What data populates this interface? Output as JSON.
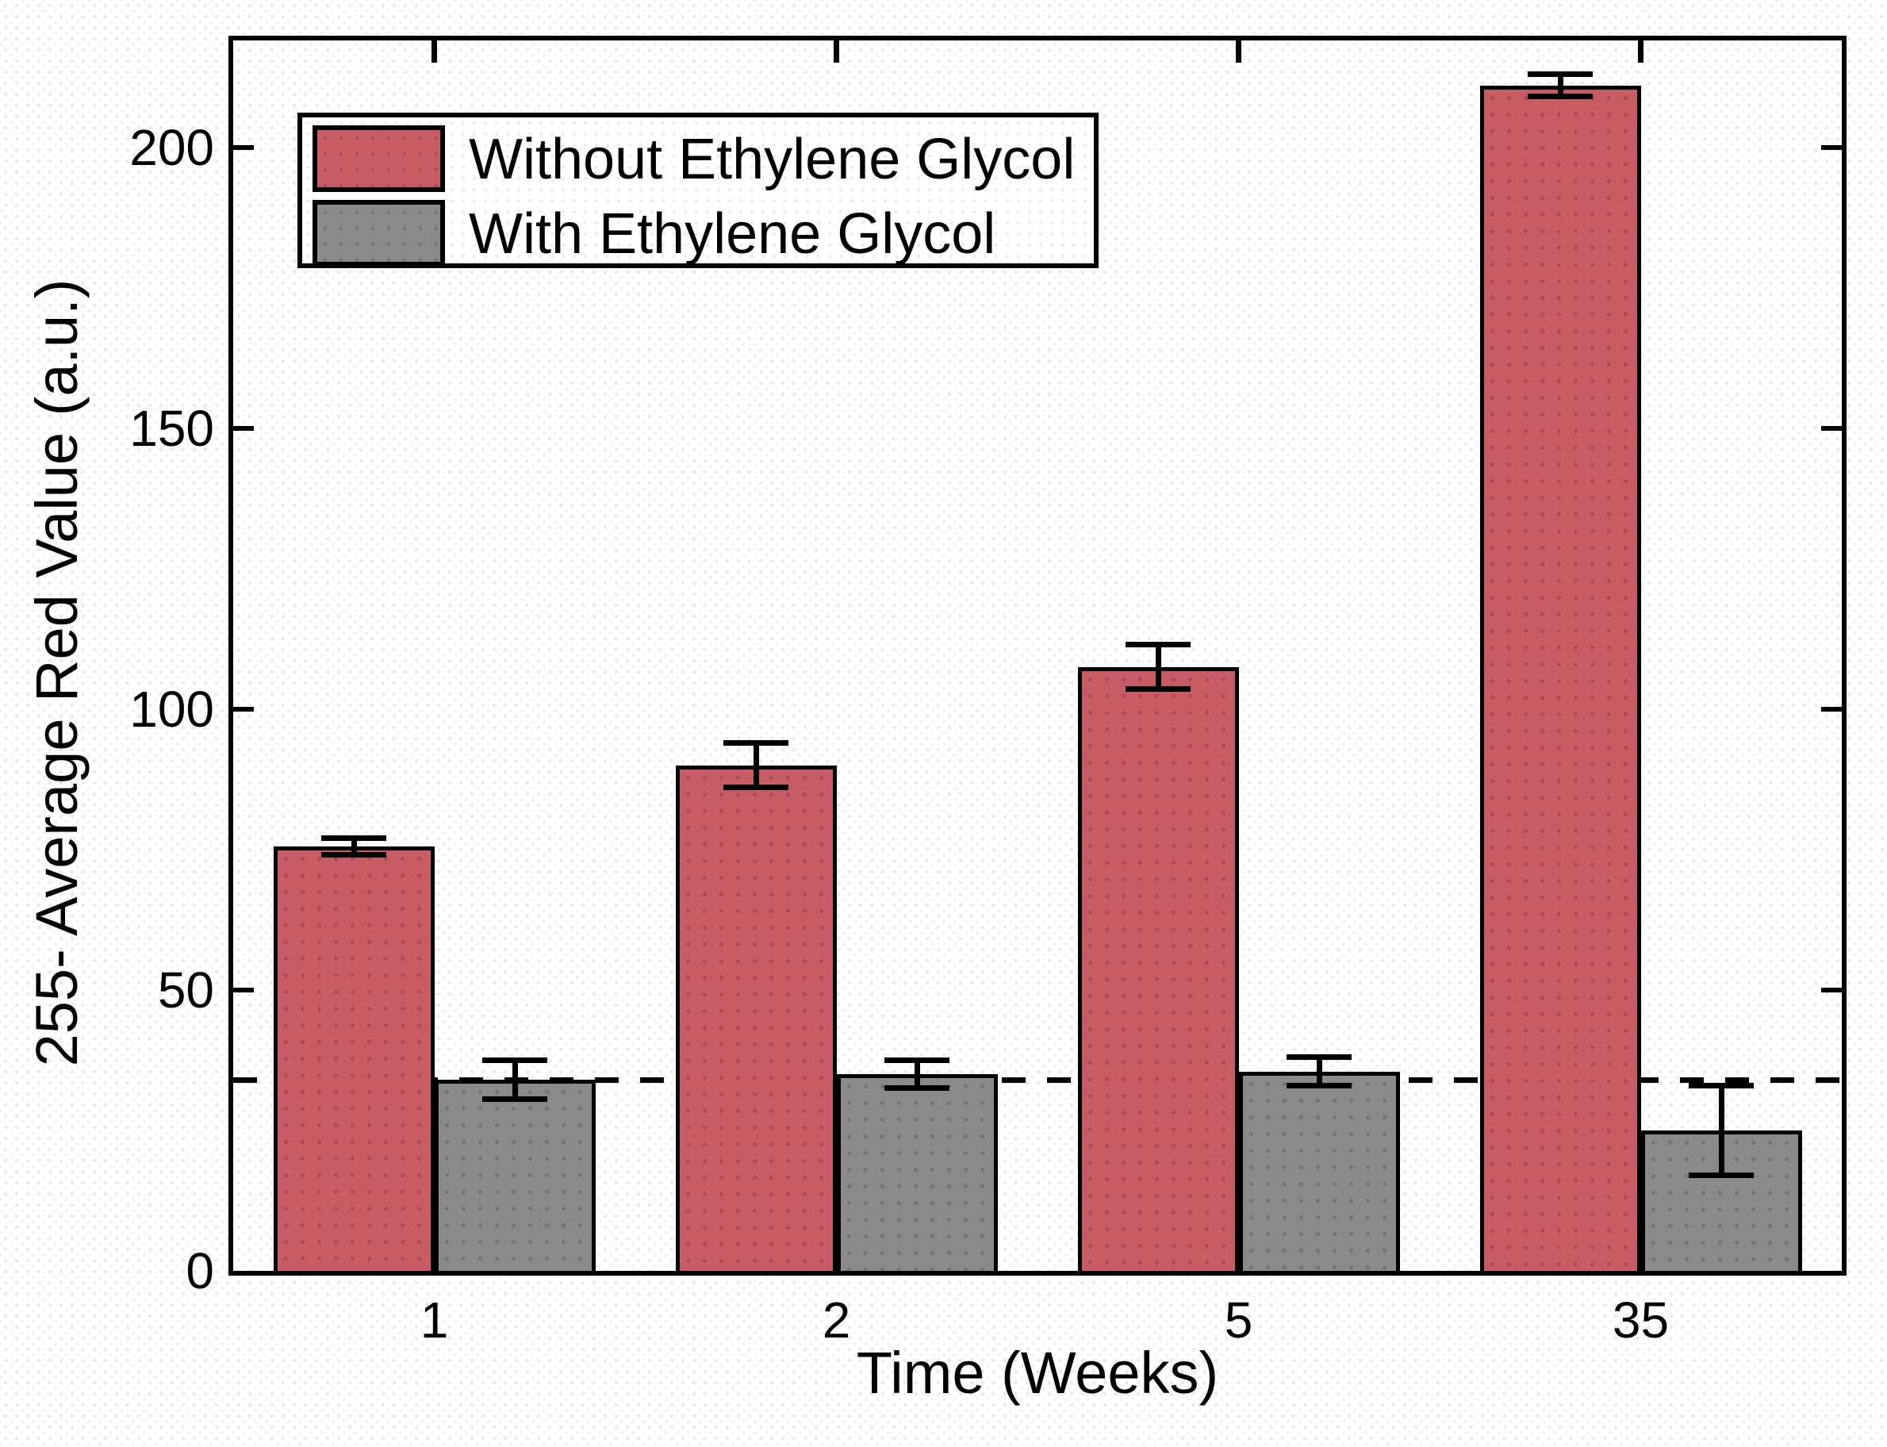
{
  "figure": {
    "y_axis": {
      "tick_values": [
        0,
        50,
        100,
        150,
        200
      ]
    },
    "x_axis": {
      "tick_labels": [
        "1",
        "2",
        "5",
        "35"
      ]
    }
  },
  "chart_data": {
    "type": "bar",
    "title": "",
    "xlabel": "Time (Weeks)",
    "ylabel": "255- Average Red Value (a.u.)",
    "categories": [
      "1",
      "2",
      "5",
      "35"
    ],
    "series": [
      {
        "name": "Without Ethylene Glycol",
        "color": "#c75c64",
        "values": [
          75.5,
          90,
          107.5,
          211
        ],
        "errors": [
          1.5,
          4,
          4,
          2
        ]
      },
      {
        "name": "With Ethylene Glycol",
        "color": "#8a8a8a",
        "values": [
          34,
          35,
          35.5,
          25
        ],
        "errors": [
          3.5,
          2.5,
          2.5,
          8
        ]
      }
    ],
    "ylim": [
      0,
      219
    ],
    "yticks": [
      0,
      50,
      100,
      150,
      200
    ],
    "grid": false,
    "legend_position": "upper-left",
    "annotations": {
      "dashed_hline": 34
    },
    "error_bars": true,
    "bar_border_color": "#000000",
    "axis_color": "#000000"
  }
}
